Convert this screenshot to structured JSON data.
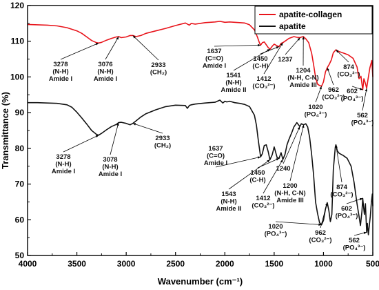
{
  "chart_data": {
    "type": "line",
    "xlabel": "Wavenumber (cm⁻¹)",
    "ylabel": "Transmittance (%)",
    "xlim": [
      4000,
      500
    ],
    "ylim": [
      50,
      120
    ],
    "xticks": [
      4000,
      3500,
      3000,
      2500,
      2000,
      1500,
      1000,
      500
    ],
    "yticks": [
      50,
      60,
      70,
      80,
      90,
      100,
      110,
      120
    ],
    "legend_position": "top-right",
    "series": [
      {
        "name": "apatite-collagen",
        "color": "#e8141b",
        "x": [
          4000,
          3900,
          3800,
          3700,
          3600,
          3500,
          3450,
          3400,
          3350,
          3300,
          3278,
          3250,
          3200,
          3150,
          3100,
          3076,
          3050,
          3000,
          2960,
          2933,
          2900,
          2850,
          2800,
          2700,
          2600,
          2500,
          2400,
          2360,
          2340,
          2300,
          2200,
          2100,
          2050,
          2000,
          1950,
          1900,
          1850,
          1800,
          1750,
          1700,
          1670,
          1650,
          1637,
          1620,
          1600,
          1560,
          1541,
          1520,
          1500,
          1470,
          1450,
          1430,
          1412,
          1390,
          1350,
          1300,
          1270,
          1237,
          1220,
          1204,
          1180,
          1150,
          1120,
          1100,
          1080,
          1060,
          1040,
          1020,
          1000,
          980,
          962,
          940,
          920,
          900,
          874,
          850,
          800,
          750,
          700,
          660,
          640,
          620,
          602,
          590,
          575,
          562,
          550,
          530,
          510,
          500
        ],
        "y": [
          114.7,
          114.6,
          114.5,
          114.3,
          113.8,
          112.9,
          112.2,
          111.2,
          110.2,
          109.6,
          109.5,
          109.7,
          110.3,
          110.8,
          111.2,
          111.3,
          111.0,
          111.2,
          111.6,
          111.6,
          111.3,
          111.6,
          112.2,
          112.9,
          113.6,
          114.4,
          115.1,
          114.5,
          115.0,
          114.8,
          115.2,
          115.4,
          115.6,
          115.3,
          115.4,
          115.3,
          115.2,
          115.1,
          114.6,
          113.2,
          111.2,
          109.6,
          108.9,
          109.6,
          109.8,
          108.2,
          107.8,
          108.6,
          109.2,
          108.7,
          108.5,
          109.4,
          109.6,
          110.0,
          110.8,
          111.3,
          111.1,
          111.0,
          111.2,
          111.3,
          110.7,
          109.6,
          106.6,
          103.4,
          99.8,
          98.0,
          97.6,
          97.4,
          98.6,
          101.4,
          102.6,
          103.6,
          104.8,
          106.8,
          107.6,
          107.2,
          106.7,
          106.2,
          105.2,
          102.8,
          99.5,
          100.2,
          96.4,
          99.5,
          98.2,
          96.8,
          99.0,
          102.5,
          104.6,
          100.0
        ]
      },
      {
        "name": "apatite",
        "color": "#111111",
        "x": [
          4000,
          3900,
          3800,
          3700,
          3600,
          3550,
          3500,
          3450,
          3400,
          3350,
          3300,
          3278,
          3250,
          3200,
          3150,
          3100,
          3078,
          3050,
          3000,
          2960,
          2933,
          2900,
          2850,
          2800,
          2700,
          2600,
          2500,
          2400,
          2380,
          2360,
          2340,
          2300,
          2200,
          2100,
          2050,
          2020,
          2000,
          1980,
          1950,
          1900,
          1850,
          1800,
          1750,
          1700,
          1680,
          1660,
          1637,
          1620,
          1600,
          1580,
          1560,
          1543,
          1520,
          1500,
          1470,
          1450,
          1430,
          1412,
          1390,
          1370,
          1350,
          1320,
          1300,
          1270,
          1240,
          1225,
          1200,
          1180,
          1160,
          1140,
          1120,
          1100,
          1080,
          1060,
          1040,
          1020,
          1000,
          980,
          962,
          945,
          930,
          915,
          900,
          880,
          874,
          860,
          840,
          800,
          760,
          720,
          690,
          660,
          640,
          625,
          610,
          602,
          595,
          585,
          575,
          562,
          555,
          545,
          535,
          525,
          515,
          505,
          500
        ],
        "y": [
          92.8,
          92.8,
          92.7,
          92.6,
          92.2,
          91.5,
          90.1,
          88.5,
          86.8,
          85.0,
          83.9,
          83.7,
          84.2,
          85.2,
          86.1,
          86.7,
          87.2,
          87.3,
          87.0,
          86.6,
          87.0,
          87.7,
          88.8,
          89.7,
          90.8,
          91.7,
          92.1,
          92.0,
          91.2,
          92.0,
          92.2,
          92.4,
          92.7,
          92.9,
          93.5,
          92.7,
          93.2,
          93.0,
          93.2,
          92.8,
          92.6,
          92.3,
          91.7,
          89.3,
          86.5,
          82.0,
          77.6,
          78.5,
          80.8,
          81.0,
          79.0,
          76.8,
          78.2,
          80.4,
          77.4,
          77.2,
          78.8,
          76.9,
          78.3,
          81.0,
          82.5,
          84.5,
          86.0,
          87.2,
          86.1,
          86.9,
          86.6,
          86.9,
          86.0,
          83.0,
          78.2,
          72.5,
          64.9,
          61.8,
          59.2,
          58.6,
          59.8,
          63.0,
          64.8,
          62.5,
          59.5,
          61.5,
          74.0,
          80.4,
          81.0,
          79.3,
          78.6,
          78.0,
          77.2,
          75.0,
          70.5,
          64.5,
          61.0,
          58.4,
          62.5,
          66.0,
          64.0,
          61.5,
          64.5,
          56.5,
          59.0,
          55.8,
          58.5,
          61.0,
          64.8,
          67.2,
          63.8
        ]
      }
    ],
    "annotations": [
      {
        "series": 0,
        "x": 3278,
        "lines": [
          "3278",
          "(N-H)",
          "Amide I"
        ]
      },
      {
        "series": 0,
        "x": 3076,
        "lines": [
          "3076",
          "(N-H)",
          "Amide I"
        ]
      },
      {
        "series": 0,
        "x": 2933,
        "lines": [
          "2933",
          "(CH₂)"
        ]
      },
      {
        "series": 0,
        "x": 1637,
        "lines": [
          "1637",
          "(C=O)",
          "Amide I"
        ]
      },
      {
        "series": 0,
        "x": 1541,
        "lines": [
          "1541",
          "(N-H)",
          "Amide II"
        ]
      },
      {
        "series": 0,
        "x": 1450,
        "lines": [
          "1450",
          "(C-H)"
        ]
      },
      {
        "series": 0,
        "x": 1412,
        "lines": [
          "1412",
          "(CO₃²⁻)"
        ]
      },
      {
        "series": 0,
        "x": 1237,
        "lines": [
          "1237"
        ]
      },
      {
        "series": 0,
        "x": 1204,
        "lines": [
          "1204",
          "(N-H, C-N)",
          "Amide III"
        ]
      },
      {
        "series": 0,
        "x": 1020,
        "lines": [
          "1020",
          "(PO₄³⁻)"
        ]
      },
      {
        "series": 0,
        "x": 962,
        "lines": [
          "962",
          "(CO₃²⁻)"
        ]
      },
      {
        "series": 0,
        "x": 874,
        "lines": [
          "874",
          "(CO₃²⁻)"
        ]
      },
      {
        "series": 0,
        "x": 602,
        "lines": [
          "602",
          "(PO₄³⁻)"
        ]
      },
      {
        "series": 0,
        "x": 562,
        "lines": [
          "562",
          "(PO₄³⁻)"
        ]
      },
      {
        "series": 1,
        "x": 3278,
        "lines": [
          "3278",
          "(N-H)",
          "Amide I"
        ]
      },
      {
        "series": 1,
        "x": 3078,
        "lines": [
          "3078",
          "(N-H)",
          "Amide I"
        ]
      },
      {
        "series": 1,
        "x": 2933,
        "lines": [
          "2933",
          "(CH₂)"
        ]
      },
      {
        "series": 1,
        "x": 1637,
        "lines": [
          "1637",
          "(C=O)",
          "Amide I"
        ]
      },
      {
        "series": 1,
        "x": 1543,
        "lines": [
          "1543",
          "(N-H)",
          "Amide II"
        ]
      },
      {
        "series": 1,
        "x": 1450,
        "lines": [
          "1450",
          "(C-H)"
        ]
      },
      {
        "series": 1,
        "x": 1412,
        "lines": [
          "1412",
          "(CO₃²⁻)"
        ]
      },
      {
        "series": 1,
        "x": 1240,
        "lines": [
          "1240"
        ]
      },
      {
        "series": 1,
        "x": 1200,
        "lines": [
          "1200",
          "(N-H, C-N)",
          "Amide III"
        ]
      },
      {
        "series": 1,
        "x": 1020,
        "lines": [
          "1020",
          "(PO₄³⁻)"
        ]
      },
      {
        "series": 1,
        "x": 962,
        "lines": [
          "962",
          "(CO₃²⁻)"
        ]
      },
      {
        "series": 1,
        "x": 874,
        "lines": [
          "874",
          "(CO₃²⁻)"
        ]
      },
      {
        "series": 1,
        "x": 602,
        "lines": [
          "602",
          "(PO₄³⁻)"
        ]
      },
      {
        "series": 1,
        "x": 562,
        "lines": [
          "562",
          "(PO₄³⁻)"
        ]
      }
    ]
  }
}
